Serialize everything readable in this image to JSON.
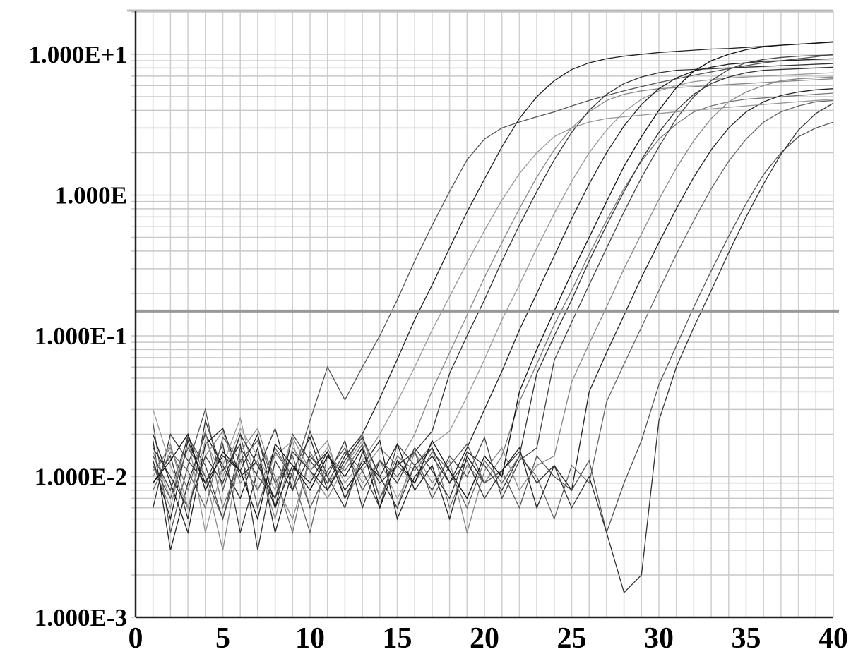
{
  "chart_data": {
    "type": "line",
    "title": "",
    "xlabel": "",
    "ylabel": "",
    "xlim": [
      0,
      40
    ],
    "ylim": [
      0.001,
      21
    ],
    "y_scale": "log",
    "grid": true,
    "x_ticks": [
      0,
      5,
      10,
      15,
      20,
      25,
      30,
      35,
      40
    ],
    "x_tick_labels": [
      "0",
      "5",
      "10",
      "15",
      "20",
      "25",
      "30",
      "35",
      "40"
    ],
    "y_ticks": [
      10,
      1,
      0.1,
      0.01,
      0.001
    ],
    "y_tick_labels": [
      "1.000E+1",
      "1.000E",
      "1.000E-1",
      "1.000E-2",
      "1.000E-3"
    ],
    "threshold": 0.15,
    "threshold_color": "#999999",
    "x": [
      1,
      2,
      3,
      4,
      5,
      6,
      7,
      8,
      9,
      10,
      11,
      12,
      13,
      14,
      15,
      16,
      17,
      18,
      19,
      20,
      21,
      22,
      23,
      24,
      25,
      26,
      27,
      28,
      29,
      30,
      31,
      32,
      33,
      34,
      35,
      36,
      37,
      38,
      39,
      40
    ],
    "series": [
      {
        "color": "#555555",
        "values": [
          0.024,
          0.004,
          0.012,
          0.03,
          0.008,
          0.02,
          0.006,
          0.015,
          0.01,
          0.025,
          0.06,
          0.035,
          0.06,
          0.1,
          0.18,
          0.34,
          0.61,
          1.06,
          1.78,
          2.5,
          3.0,
          3.3,
          3.6,
          3.9,
          4.3,
          4.7,
          5.1,
          5.5,
          5.9,
          6.3,
          6.7,
          7.1,
          7.5,
          7.9,
          8.3,
          8.7,
          9.0,
          9.3,
          9.6,
          10
        ]
      },
      {
        "color": "#222222",
        "values": [
          0.018,
          0.003,
          0.009,
          0.02,
          0.012,
          0.007,
          0.016,
          0.004,
          0.011,
          0.019,
          0.008,
          0.014,
          0.02,
          0.036,
          0.068,
          0.13,
          0.23,
          0.42,
          0.76,
          1.3,
          2.2,
          3.5,
          5.0,
          6.5,
          7.8,
          8.7,
          9.3,
          9.7,
          10,
          10.3,
          10.5,
          10.7,
          10.9,
          11,
          11.2,
          11.4,
          11.6,
          11.8,
          12,
          12.3
        ]
      },
      {
        "color": "#888888",
        "values": [
          0.012,
          0.006,
          0.02,
          0.01,
          0.003,
          0.015,
          0.022,
          0.009,
          0.005,
          0.013,
          0.018,
          0.007,
          0.011,
          0.016,
          0.012,
          0.02,
          0.041,
          0.076,
          0.14,
          0.26,
          0.46,
          0.8,
          1.34,
          2.1,
          3.0,
          3.9,
          4.7,
          5.2,
          5.5,
          5.7,
          5.8,
          5.9,
          6.0,
          6.1,
          6.2,
          6.3,
          6.4,
          6.5,
          6.6,
          6.7
        ]
      },
      {
        "color": "#333333",
        "values": [
          0.009,
          0.014,
          0.005,
          0.025,
          0.011,
          0.017,
          0.003,
          0.013,
          0.008,
          0.021,
          0.01,
          0.006,
          0.015,
          0.009,
          0.012,
          0.015,
          0.021,
          0.054,
          0.1,
          0.18,
          0.34,
          0.61,
          1.06,
          1.78,
          2.79,
          4.0,
          5.2,
          6.2,
          6.9,
          7.4,
          7.7,
          7.8,
          7.9,
          8.0,
          8.1,
          8.2,
          8.3,
          8.4,
          8.5,
          8.6
        ]
      },
      {
        "color": "#999999",
        "values": [
          0.015,
          0.007,
          0.019,
          0.004,
          0.012,
          0.026,
          0.008,
          0.014,
          0.018,
          0.006,
          0.011,
          0.016,
          0.009,
          0.013,
          0.007,
          0.012,
          0.017,
          0.021,
          0.037,
          0.068,
          0.13,
          0.23,
          0.42,
          0.74,
          1.25,
          2.0,
          2.9,
          3.9,
          4.8,
          5.5,
          6.0,
          6.4,
          6.6,
          6.8,
          6.9,
          7.0,
          7.1,
          7.2,
          7.3,
          7.4
        ]
      },
      {
        "color": "#222222",
        "values": [
          0.02,
          0.009,
          0.004,
          0.017,
          0.022,
          0.01,
          0.013,
          0.006,
          0.019,
          0.011,
          0.015,
          0.008,
          0.012,
          0.018,
          0.005,
          0.01,
          0.014,
          0.009,
          0.016,
          0.03,
          0.056,
          0.11,
          0.2,
          0.37,
          0.68,
          1.2,
          2.0,
          3.1,
          4.4,
          5.7,
          6.8,
          7.6,
          8.1,
          8.5,
          8.7,
          8.9,
          9.0,
          9.1,
          9.2,
          9.3
        ]
      },
      {
        "color": "#777777",
        "values": [
          0.011,
          0.016,
          0.008,
          0.021,
          0.006,
          0.013,
          0.018,
          0.01,
          0.004,
          0.015,
          0.009,
          0.012,
          0.02,
          0.007,
          0.014,
          0.011,
          0.016,
          0.006,
          0.012,
          0.009,
          0.014,
          0.034,
          0.063,
          0.12,
          0.21,
          0.38,
          0.66,
          1.11,
          1.74,
          2.5,
          3.2,
          3.9,
          4.3,
          4.6,
          4.8,
          4.9,
          5.0,
          5.1,
          5.2,
          5.3
        ]
      },
      {
        "color": "#333333",
        "values": [
          0.006,
          0.02,
          0.013,
          0.009,
          0.017,
          0.004,
          0.011,
          0.022,
          0.008,
          0.014,
          0.01,
          0.018,
          0.006,
          0.013,
          0.009,
          0.016,
          0.011,
          0.007,
          0.015,
          0.012,
          0.008,
          0.014,
          0.054,
          0.1,
          0.18,
          0.34,
          0.61,
          1.06,
          1.78,
          2.79,
          4.0,
          5.2,
          6.2,
          6.9,
          7.4,
          7.7,
          7.8,
          7.9,
          8.0,
          8.1
        ]
      },
      {
        "color": "#444444",
        "values": [
          0.014,
          0.008,
          0.019,
          0.012,
          0.005,
          0.016,
          0.01,
          0.007,
          0.02,
          0.013,
          0.009,
          0.015,
          0.011,
          0.006,
          0.017,
          0.012,
          0.008,
          0.014,
          0.01,
          0.019,
          0.007,
          0.013,
          0.016,
          0.067,
          0.125,
          0.23,
          0.42,
          0.76,
          1.33,
          2.2,
          3.5,
          5.0,
          6.5,
          7.8,
          8.7,
          9.2,
          9.5,
          9.7,
          9.8,
          9.9
        ]
      },
      {
        "color": "#888888",
        "values": [
          0.01,
          0.017,
          0.006,
          0.014,
          0.021,
          0.009,
          0.013,
          0.005,
          0.016,
          0.011,
          0.007,
          0.012,
          0.018,
          0.01,
          0.006,
          0.015,
          0.009,
          0.013,
          0.004,
          0.011,
          0.016,
          0.008,
          0.012,
          0.014,
          0.047,
          0.088,
          0.16,
          0.3,
          0.53,
          0.93,
          1.56,
          2.44,
          3.5,
          4.6,
          5.4,
          6.0,
          6.5,
          6.7,
          6.8,
          6.9
        ]
      },
      {
        "color": "#222222",
        "values": [
          0.013,
          0.005,
          0.018,
          0.009,
          0.014,
          0.011,
          0.02,
          0.006,
          0.012,
          0.009,
          0.015,
          0.007,
          0.013,
          0.01,
          0.017,
          0.008,
          0.012,
          0.005,
          0.014,
          0.009,
          0.011,
          0.016,
          0.006,
          0.012,
          0.008,
          0.04,
          0.076,
          0.14,
          0.26,
          0.46,
          0.8,
          1.34,
          2.1,
          3.0,
          3.9,
          4.6,
          5.1,
          5.4,
          5.6,
          5.7
        ]
      },
      {
        "color": "#666666",
        "values": [
          0.008,
          0.015,
          0.011,
          0.006,
          0.019,
          0.013,
          0.008,
          0.016,
          0.01,
          0.004,
          0.014,
          0.011,
          0.017,
          0.007,
          0.012,
          0.009,
          0.015,
          0.011,
          0.006,
          0.013,
          0.009,
          0.014,
          0.01,
          0.005,
          0.012,
          0.009,
          0.034,
          0.063,
          0.115,
          0.21,
          0.38,
          0.66,
          1.11,
          1.74,
          2.5,
          3.3,
          3.9,
          4.3,
          4.6,
          4.7
        ]
      },
      {
        "color": "#555555",
        "values": [
          0.012,
          0.007,
          0.016,
          0.01,
          0.005,
          0.013,
          0.018,
          0.009,
          0.014,
          0.006,
          0.011,
          0.016,
          0.008,
          0.013,
          0.01,
          0.015,
          0.007,
          0.012,
          0.017,
          0.009,
          0.011,
          0.006,
          0.014,
          0.01,
          0.008,
          0.013,
          0.004,
          0.009,
          0.018,
          0.045,
          0.085,
          0.16,
          0.29,
          0.51,
          0.87,
          1.4,
          2.0,
          2.6,
          3.0,
          3.3
        ]
      },
      {
        "color": "#333333",
        "values": [
          0.016,
          0.01,
          0.006,
          0.014,
          0.009,
          0.02,
          0.012,
          0.007,
          0.015,
          0.011,
          0.008,
          0.013,
          0.019,
          0.01,
          0.006,
          0.012,
          0.016,
          0.009,
          0.013,
          0.007,
          0.011,
          0.015,
          0.009,
          0.012,
          0.006,
          0.01,
          0.004,
          0.0015,
          0.002,
          0.025,
          0.06,
          0.115,
          0.21,
          0.39,
          0.7,
          1.2,
          1.95,
          2.9,
          3.8,
          4.5
        ]
      },
      {
        "color": "#111111",
        "values": [
          0.009,
          0.013,
          0.02,
          0.008,
          0.015,
          0.011,
          0.005,
          0.017,
          0.012,
          0.008,
          0.014,
          0.01,
          0.016,
          0.006,
          0.013,
          0.009,
          0.018,
          0.011,
          0.007,
          0.014,
          0.01,
          0.04,
          0.08,
          0.15,
          0.28,
          0.5,
          0.9,
          1.6,
          2.6,
          4.0,
          5.8,
          7.6,
          9.0,
          10,
          10.8,
          11.3,
          11.6,
          11.8,
          12,
          12.2
        ]
      },
      {
        "color": "#999999",
        "values": [
          0.03,
          0.012,
          0.006,
          0.018,
          0.01,
          0.022,
          0.014,
          0.008,
          0.019,
          0.011,
          0.016,
          0.009,
          0.013,
          0.02,
          0.034,
          0.06,
          0.11,
          0.19,
          0.33,
          0.56,
          0.92,
          1.42,
          2.0,
          2.6,
          3.0,
          3.3,
          3.5,
          3.6,
          3.7,
          3.8,
          3.9,
          4.0,
          4.1,
          4.2,
          4.3,
          4.4,
          4.5,
          4.6,
          4.7,
          4.8
        ]
      }
    ]
  }
}
